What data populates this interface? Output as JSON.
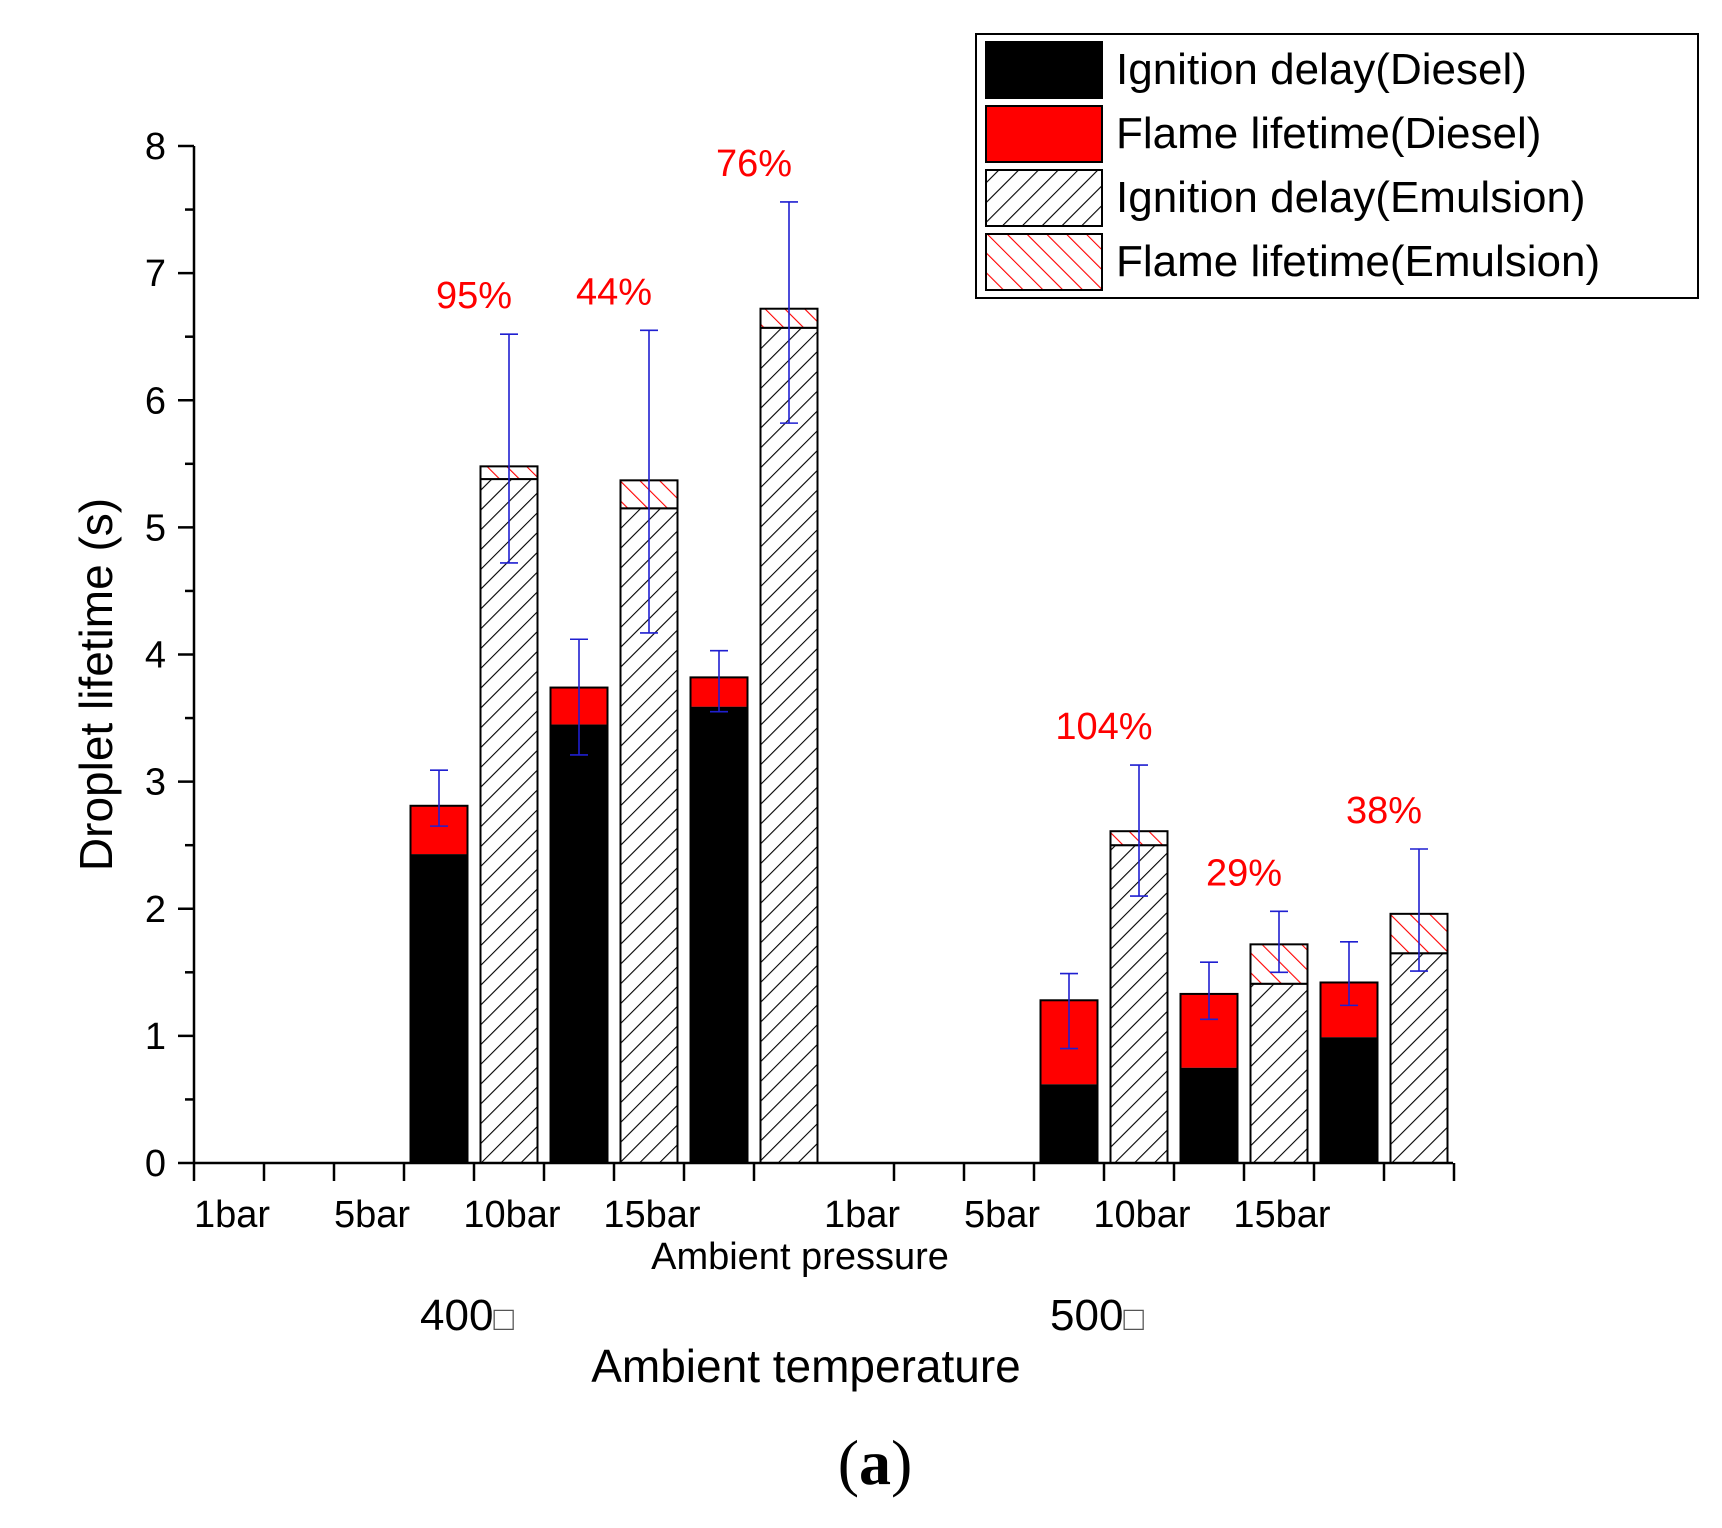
{
  "chart_data": {
    "type": "bar",
    "stacked": true,
    "ylabel": "Droplet lifetime (s)",
    "xlabel": "Ambient pressure",
    "group_axis_label": "Ambient temperature",
    "ylim": [
      0,
      8
    ],
    "yticks": [
      "0",
      "1",
      "2",
      "3",
      "4",
      "5",
      "6",
      "7",
      "8"
    ],
    "caption": {
      "open": "(",
      "letter": "a",
      "close": ")"
    },
    "legend": {
      "placement": "top-right",
      "entries": [
        {
          "label": "Ignition delay(Diesel)",
          "fill": "#000000",
          "pattern": "solid"
        },
        {
          "label": "Flame lifetime(Diesel)",
          "fill": "#ff0000",
          "pattern": "solid"
        },
        {
          "label": "Ignition delay(Emulsion)",
          "fill": "#000000",
          "pattern": "hatch-forward"
        },
        {
          "label": "Flame lifetime(Emulsion)",
          "fill": "#ff0000",
          "pattern": "hatch-backward"
        }
      ]
    },
    "groups": [
      {
        "temperature": "400",
        "degree_glyph": "□",
        "pressures": [
          {
            "label": "1bar",
            "diesel": null,
            "emulsion": null,
            "increase": ""
          },
          {
            "label": "5bar",
            "diesel": {
              "ignition_delay": 2.43,
              "flame_lifetime": 0.38,
              "error_low": 2.65,
              "error_high": 3.09
            },
            "emulsion": {
              "ignition_delay": 5.38,
              "flame_lifetime": 0.1,
              "error_low": 4.72,
              "error_high": 6.52
            },
            "increase": "95%"
          },
          {
            "label": "10bar",
            "diesel": {
              "ignition_delay": 3.45,
              "flame_lifetime": 0.29,
              "error_low": 3.21,
              "error_high": 4.12
            },
            "emulsion": {
              "ignition_delay": 5.15,
              "flame_lifetime": 0.22,
              "error_low": 4.17,
              "error_high": 6.55
            },
            "increase": "44%"
          },
          {
            "label": "15bar",
            "diesel": {
              "ignition_delay": 3.59,
              "flame_lifetime": 0.23,
              "error_low": 3.55,
              "error_high": 4.03
            },
            "emulsion": {
              "ignition_delay": 6.57,
              "flame_lifetime": 0.15,
              "error_low": 5.82,
              "error_high": 7.56
            },
            "increase": "76%"
          }
        ]
      },
      {
        "temperature": "500",
        "degree_glyph": "□",
        "pressures": [
          {
            "label": "1bar",
            "diesel": null,
            "emulsion": null,
            "increase": ""
          },
          {
            "label": "5bar",
            "diesel": {
              "ignition_delay": 0.62,
              "flame_lifetime": 0.66,
              "error_low": 0.9,
              "error_high": 1.49
            },
            "emulsion": {
              "ignition_delay": 2.5,
              "flame_lifetime": 0.11,
              "error_low": 2.1,
              "error_high": 3.13
            },
            "increase": "104%"
          },
          {
            "label": "10bar",
            "diesel": {
              "ignition_delay": 0.75,
              "flame_lifetime": 0.58,
              "error_low": 1.13,
              "error_high": 1.58
            },
            "emulsion": {
              "ignition_delay": 1.41,
              "flame_lifetime": 0.31,
              "error_low": 1.5,
              "error_high": 1.98
            },
            "increase": "29%"
          },
          {
            "label": "15bar",
            "diesel": {
              "ignition_delay": 0.99,
              "flame_lifetime": 0.43,
              "error_low": 1.24,
              "error_high": 1.74
            },
            "emulsion": {
              "ignition_delay": 1.65,
              "flame_lifetime": 0.31,
              "error_low": 1.51,
              "error_high": 2.47
            },
            "increase": "38%"
          }
        ]
      }
    ],
    "colors": {
      "ignition": "#000000",
      "flame": "#ff0000",
      "error_bar": "#1f1fd0",
      "annotation": "#ff0000",
      "axis": "#000000"
    }
  }
}
